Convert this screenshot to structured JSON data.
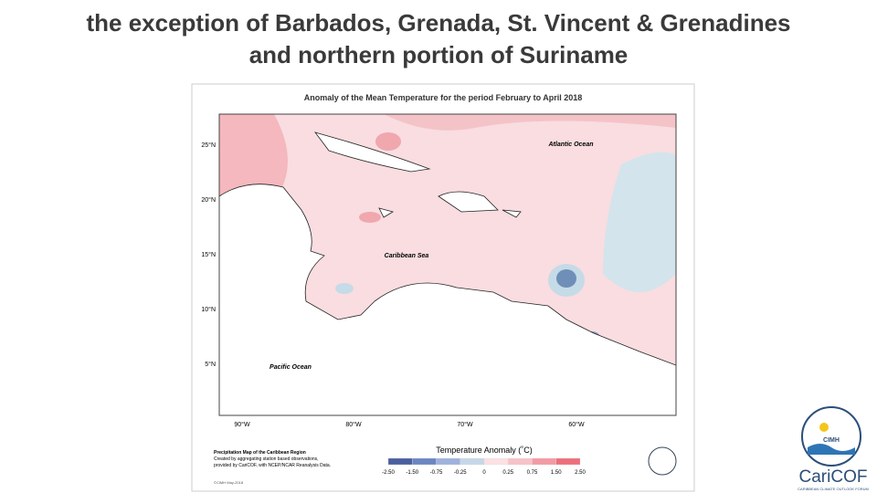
{
  "slide": {
    "title_lines": [
      "the exception of Barbados, Grenada, St. Vincent & Grenadines",
      "and northern portion of Suriname"
    ]
  },
  "map": {
    "title": "Anomaly of the Mean Temperature for the period February to April 2018",
    "lat_labels": [
      "25°N",
      "20°N",
      "15°N",
      "10°N",
      "5°N"
    ],
    "lon_labels": [
      "90°W",
      "80°W",
      "70°W",
      "60°W"
    ],
    "ocean_labels": [
      "Atlantic Ocean",
      "Caribbean Sea",
      "Pacific Ocean"
    ],
    "legend_title": "Temperature Anomaly (˚C)",
    "legend_ticks": [
      "-2.50",
      "-1.50",
      "-0.75",
      "-0.25",
      "0",
      "0.25",
      "0.75",
      "1.50",
      "2.50"
    ],
    "notes": [
      "Precipitation Map of the Caribbean Region",
      "Created by aggregating station based observations,",
      "provided by CariCOF, with NCEP/NCAR Reanalysis Data."
    ],
    "footer": "©CIMH May-2018"
  },
  "logo": {
    "cimh": "CIMH",
    "name": "CariCOF",
    "tagline": "CARIBBEAN CLIMATE OUTLOOK FORUM"
  }
}
